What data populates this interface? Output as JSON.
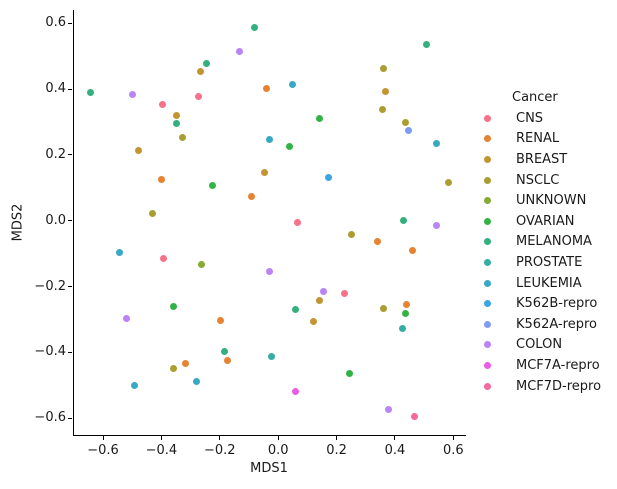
{
  "chart_data": {
    "type": "scatter",
    "title": "",
    "xlabel": "MDS1",
    "ylabel": "MDS2",
    "xlim": [
      -0.703,
      0.64
    ],
    "ylim": [
      -0.651,
      0.64
    ],
    "xticks": [
      -0.6,
      -0.4,
      -0.2,
      0.0,
      0.2,
      0.4,
      0.6
    ],
    "yticks": [
      0.6,
      0.4,
      0.2,
      0.0,
      -0.2,
      -0.4,
      -0.6
    ],
    "grid": false,
    "legend_title": "Cancer",
    "legend_position": "right-outside",
    "series": [
      {
        "name": "CNS",
        "color": "#f77189",
        "points": [
          [
            -0.397,
            0.353
          ],
          [
            -0.273,
            0.378
          ],
          [
            0.066,
            -0.005
          ],
          [
            -0.394,
            -0.116
          ],
          [
            0.228,
            -0.22
          ]
        ]
      },
      {
        "name": "RENAL",
        "color": "#e68332",
        "points": [
          [
            -0.399,
            0.125
          ],
          [
            -0.039,
            0.403
          ],
          [
            -0.093,
            0.073
          ],
          [
            -0.199,
            -0.304
          ],
          [
            -0.174,
            -0.424
          ],
          [
            -0.317,
            -0.433
          ],
          [
            0.341,
            -0.063
          ],
          [
            0.46,
            -0.09
          ],
          [
            0.441,
            -0.255
          ]
        ]
      },
      {
        "name": "BREAST",
        "color": "#c39532",
        "points": [
          [
            -0.35,
            0.319
          ],
          [
            -0.477,
            0.213
          ],
          [
            -0.267,
            0.452
          ],
          [
            0.366,
            0.393
          ],
          [
            -0.048,
            0.147
          ],
          [
            0.141,
            -0.242
          ],
          [
            0.121,
            -0.306
          ]
        ]
      },
      {
        "name": "NSCLC",
        "color": "#ab9e31",
        "points": [
          [
            -0.328,
            0.254
          ],
          [
            -0.431,
            0.023
          ],
          [
            0.361,
            0.461
          ],
          [
            0.356,
            0.337
          ],
          [
            0.437,
            0.297
          ],
          [
            0.584,
            0.115
          ],
          [
            -0.359,
            -0.449
          ],
          [
            0.25,
            -0.042
          ],
          [
            0.361,
            -0.268
          ]
        ]
      },
      {
        "name": "UNKNOWN",
        "color": "#85ab31",
        "points": [
          [
            -0.263,
            -0.132
          ]
        ]
      },
      {
        "name": "OVARIAN",
        "color": "#34b345",
        "points": [
          [
            -0.226,
            0.106
          ],
          [
            0.142,
            0.309
          ],
          [
            0.038,
            0.226
          ],
          [
            -0.359,
            -0.261
          ],
          [
            0.436,
            -0.283
          ],
          [
            0.244,
            -0.464
          ]
        ]
      },
      {
        "name": "MELANOMA",
        "color": "#33b07d",
        "points": [
          [
            -0.644,
            0.388
          ],
          [
            -0.35,
            0.296
          ],
          [
            -0.244,
            0.479
          ],
          [
            -0.082,
            0.586
          ],
          [
            0.507,
            0.536
          ],
          [
            0.431,
            0.001
          ],
          [
            -0.185,
            -0.397
          ],
          [
            0.059,
            -0.271
          ]
        ]
      },
      {
        "name": "PROSTATE",
        "color": "#36ada4",
        "points": [
          [
            0.426,
            -0.328
          ],
          [
            -0.022,
            -0.412
          ]
        ]
      },
      {
        "name": "LEUKEMIA",
        "color": "#38a8c5",
        "points": [
          [
            0.049,
            0.413
          ],
          [
            -0.03,
            0.248
          ],
          [
            0.542,
            0.235
          ],
          [
            -0.544,
            -0.098
          ],
          [
            -0.279,
            -0.488
          ],
          [
            -0.493,
            -0.502
          ]
        ]
      },
      {
        "name": "K562B-repro",
        "color": "#3aa5e1",
        "points": [
          [
            0.174,
            0.13
          ]
        ]
      },
      {
        "name": "K562A-repro",
        "color": "#7e9bf6",
        "points": [
          [
            0.447,
            0.274
          ]
        ]
      },
      {
        "name": "COLON",
        "color": "#bc83f4",
        "points": [
          [
            -0.498,
            0.383
          ],
          [
            -0.133,
            0.514
          ],
          [
            0.542,
            -0.015
          ],
          [
            -0.52,
            -0.296
          ],
          [
            -0.03,
            -0.153
          ],
          [
            0.155,
            -0.214
          ],
          [
            0.378,
            -0.575
          ]
        ]
      },
      {
        "name": "MCF7A-repro",
        "color": "#ed5ae5",
        "points": [
          [
            0.059,
            -0.52
          ]
        ]
      },
      {
        "name": "MCF7D-repro",
        "color": "#f6699e",
        "points": [
          [
            0.467,
            -0.595
          ]
        ]
      }
    ]
  }
}
